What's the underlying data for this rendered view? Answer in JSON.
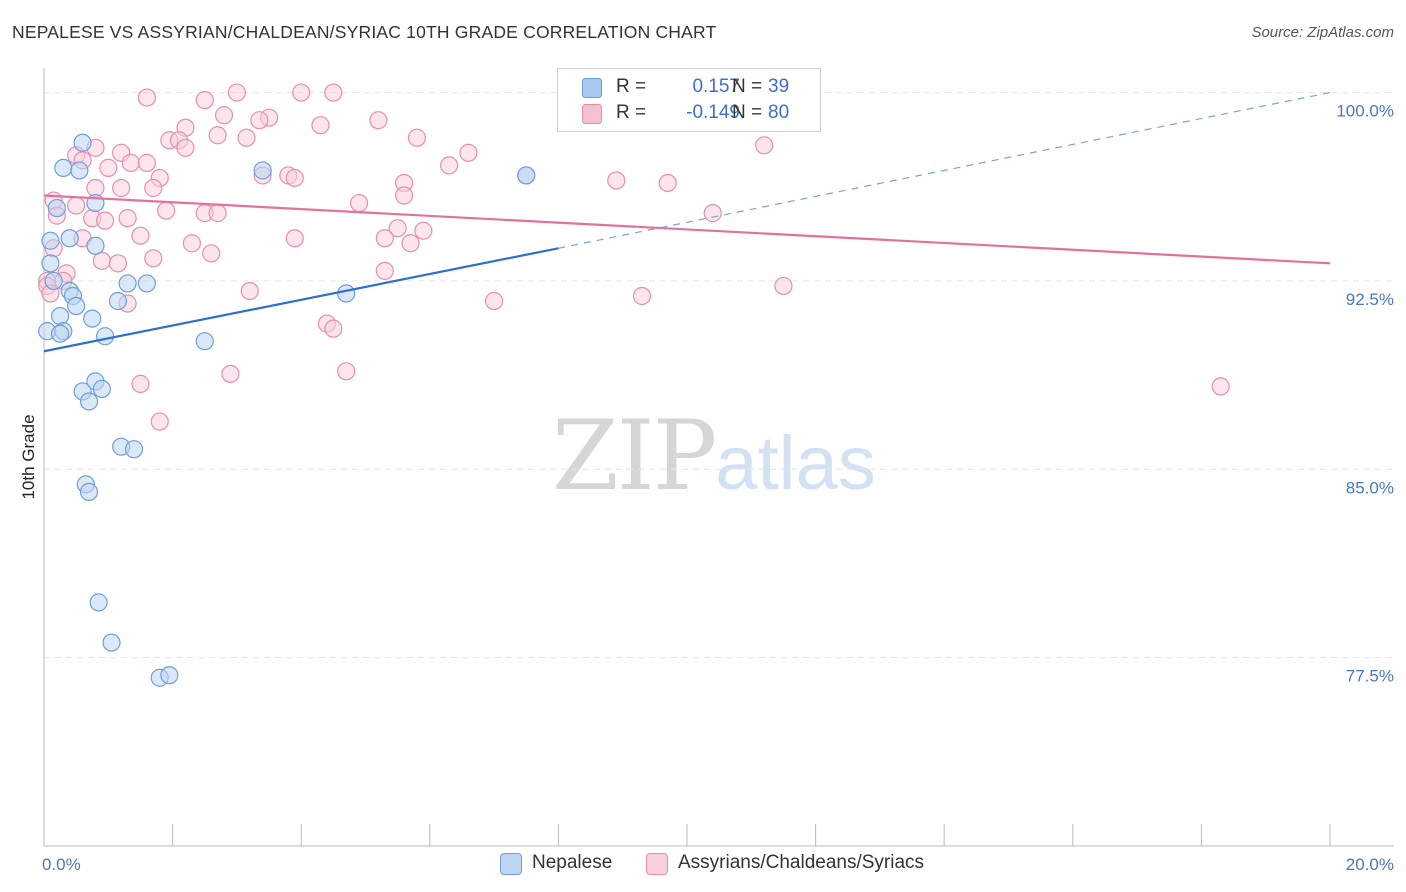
{
  "header": {
    "title": "NEPALESE VS ASSYRIAN/CHALDEAN/SYRIAC 10TH GRADE CORRELATION CHART",
    "source": "Source: ZipAtlas.com"
  },
  "watermark": {
    "zip": "ZIP",
    "atlas": "atlas"
  },
  "legend": {
    "rows": [
      {
        "r_label": "R =",
        "r_value": "0.157",
        "n_label": "N =",
        "n_value": "39",
        "color": "#a9c8f0",
        "border": "#6f9fd8"
      },
      {
        "r_label": "R =",
        "r_value": "-0.149",
        "n_label": "N =",
        "n_value": "80",
        "color": "#f6c0d0",
        "border": "#e58fae"
      }
    ]
  },
  "bottom_legend": [
    {
      "label": "Nepalese",
      "color": "#bcd5f3",
      "border": "#6f9fd8"
    },
    {
      "label": "Assyrians/Chaldeans/Syriacs",
      "color": "#f9d0dc",
      "border": "#e58fae"
    }
  ],
  "chart_data": {
    "type": "scatter",
    "title": "NEPALESE VS ASSYRIAN/CHALDEAN/SYRIAC 10TH GRADE CORRELATION CHART",
    "xlabel": "",
    "ylabel": "10th Grade",
    "xlim": [
      0,
      20
    ],
    "ylim": [
      70.0,
      100.5
    ],
    "x_tick_labels": [
      {
        "value": 0,
        "label": "0.0%"
      },
      {
        "value": 20,
        "label": "20.0%"
      }
    ],
    "x_tick_marks": [
      0,
      2,
      4,
      6,
      8,
      10,
      12,
      14,
      16,
      18,
      20
    ],
    "y_ticks": [
      {
        "value": 100,
        "label": "100.0%"
      },
      {
        "value": 92.5,
        "label": "92.5%"
      },
      {
        "value": 85,
        "label": "85.0%"
      },
      {
        "value": 77.5,
        "label": "77.5%"
      }
    ],
    "grid": true,
    "series": [
      {
        "name": "Nepalese",
        "color": "#6f9fd8",
        "fill": "#bcd5f3",
        "trend": {
          "x0": 0,
          "y0": 89.7,
          "x1": 8,
          "y1": 93.8,
          "dashed_to_x": 20,
          "dashed_to_y": 100.0,
          "color": "#2e6fce"
        },
        "points": [
          [
            0.6,
            98.0
          ],
          [
            0.3,
            97.0
          ],
          [
            0.55,
            96.9
          ],
          [
            0.2,
            95.4
          ],
          [
            0.8,
            95.6
          ],
          [
            0.1,
            94.1
          ],
          [
            0.4,
            94.2
          ],
          [
            0.8,
            93.9
          ],
          [
            0.1,
            93.2
          ],
          [
            0.15,
            92.5
          ],
          [
            1.3,
            92.4
          ],
          [
            1.6,
            92.4
          ],
          [
            0.4,
            92.1
          ],
          [
            0.45,
            91.9
          ],
          [
            1.15,
            91.7
          ],
          [
            0.5,
            91.5
          ],
          [
            0.25,
            91.1
          ],
          [
            0.75,
            91.0
          ],
          [
            0.05,
            90.5
          ],
          [
            0.3,
            90.5
          ],
          [
            0.25,
            90.4
          ],
          [
            0.95,
            90.3
          ],
          [
            2.5,
            90.1
          ],
          [
            4.7,
            92.0
          ],
          [
            3.4,
            96.9
          ],
          [
            7.5,
            96.7
          ],
          [
            7.5,
            96.7
          ],
          [
            0.8,
            88.5
          ],
          [
            0.9,
            88.2
          ],
          [
            0.6,
            88.1
          ],
          [
            0.7,
            87.7
          ],
          [
            1.2,
            85.9
          ],
          [
            1.4,
            85.8
          ],
          [
            0.65,
            84.4
          ],
          [
            0.7,
            84.1
          ],
          [
            0.85,
            79.7
          ],
          [
            1.05,
            78.1
          ],
          [
            1.8,
            76.7
          ],
          [
            1.95,
            76.8
          ]
        ]
      },
      {
        "name": "Assyrians/Chaldeans/Syriacs",
        "color": "#e58fae",
        "fill": "#f9d0dc",
        "trend": {
          "x0": 0,
          "y0": 95.9,
          "x1": 20,
          "y1": 93.2,
          "color": "#e2729b"
        },
        "points": [
          [
            1.6,
            99.8
          ],
          [
            2.5,
            99.7
          ],
          [
            3.0,
            100.0
          ],
          [
            4.0,
            100.0
          ],
          [
            4.5,
            100.0
          ],
          [
            2.8,
            99.1
          ],
          [
            3.5,
            99.0
          ],
          [
            3.35,
            98.9
          ],
          [
            4.3,
            98.7
          ],
          [
            5.2,
            98.9
          ],
          [
            2.2,
            98.6
          ],
          [
            2.7,
            98.3
          ],
          [
            1.95,
            98.1
          ],
          [
            2.1,
            98.1
          ],
          [
            3.15,
            98.2
          ],
          [
            5.8,
            98.2
          ],
          [
            0.8,
            97.8
          ],
          [
            1.2,
            97.6
          ],
          [
            1.35,
            97.2
          ],
          [
            1.6,
            97.2
          ],
          [
            2.2,
            97.8
          ],
          [
            0.5,
            97.5
          ],
          [
            0.6,
            97.3
          ],
          [
            1.0,
            97.0
          ],
          [
            6.6,
            97.6
          ],
          [
            6.3,
            97.1
          ],
          [
            11.2,
            97.9
          ],
          [
            3.4,
            96.7
          ],
          [
            3.8,
            96.7
          ],
          [
            3.9,
            96.6
          ],
          [
            1.8,
            96.6
          ],
          [
            5.6,
            96.4
          ],
          [
            8.9,
            96.5
          ],
          [
            9.7,
            96.4
          ],
          [
            0.8,
            96.2
          ],
          [
            1.2,
            96.2
          ],
          [
            1.7,
            96.2
          ],
          [
            5.6,
            95.9
          ],
          [
            0.15,
            95.7
          ],
          [
            0.5,
            95.5
          ],
          [
            4.9,
            95.6
          ],
          [
            1.9,
            95.3
          ],
          [
            0.2,
            95.1
          ],
          [
            0.75,
            95.0
          ],
          [
            0.95,
            94.9
          ],
          [
            1.3,
            95.0
          ],
          [
            2.5,
            95.2
          ],
          [
            2.7,
            95.2
          ],
          [
            10.4,
            95.2
          ],
          [
            5.5,
            94.6
          ],
          [
            5.9,
            94.5
          ],
          [
            0.6,
            94.2
          ],
          [
            1.5,
            94.3
          ],
          [
            3.9,
            94.2
          ],
          [
            5.3,
            94.2
          ],
          [
            5.7,
            94.0
          ],
          [
            2.3,
            94.0
          ],
          [
            0.15,
            93.8
          ],
          [
            2.6,
            93.6
          ],
          [
            1.7,
            93.4
          ],
          [
            0.9,
            93.3
          ],
          [
            1.15,
            93.2
          ],
          [
            5.3,
            92.9
          ],
          [
            0.35,
            92.8
          ],
          [
            0.05,
            92.5
          ],
          [
            0.3,
            92.5
          ],
          [
            11.5,
            92.3
          ],
          [
            3.2,
            92.1
          ],
          [
            9.3,
            91.9
          ],
          [
            7.0,
            91.7
          ],
          [
            1.3,
            91.6
          ],
          [
            4.4,
            90.8
          ],
          [
            4.5,
            90.6
          ],
          [
            4.7,
            88.9
          ],
          [
            2.9,
            88.8
          ],
          [
            1.5,
            88.4
          ],
          [
            18.3,
            88.3
          ],
          [
            1.8,
            86.9
          ],
          [
            0.05,
            92.3
          ],
          [
            0.1,
            92.0
          ]
        ]
      }
    ]
  }
}
